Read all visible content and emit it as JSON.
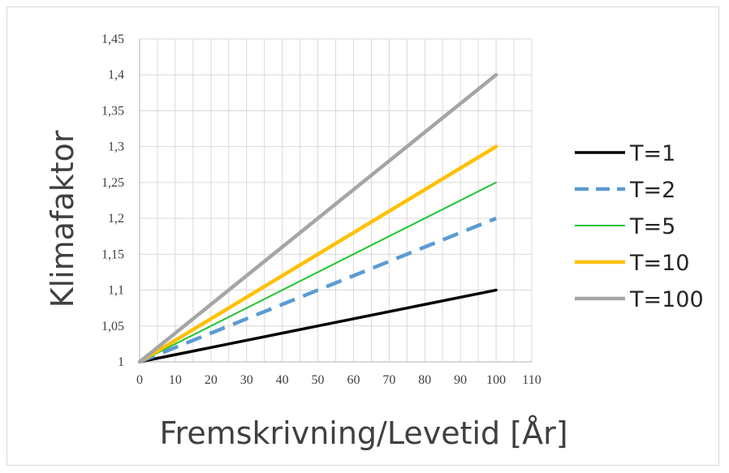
{
  "chart_data": {
    "type": "line",
    "title": "",
    "xlabel": "Fremskrivning/Levetid [År]",
    "ylabel": "Klimafaktor",
    "xlim": [
      0,
      110
    ],
    "ylim": [
      1,
      1.45
    ],
    "x_ticks": [
      "0",
      "10",
      "20",
      "30",
      "40",
      "50",
      "60",
      "70",
      "80",
      "90",
      "100",
      "110"
    ],
    "y_ticks": [
      "1",
      "1,05",
      "1,1",
      "1,15",
      "1,2",
      "1,25",
      "1,3",
      "1,35",
      "1,4",
      "1,45"
    ],
    "x_minor_step": 5,
    "grid": true,
    "legend_position": "right",
    "series": [
      {
        "name": "T=1",
        "color": "#000000",
        "style": "solid",
        "x": [
          0,
          100
        ],
        "y": [
          1,
          1.1
        ]
      },
      {
        "name": "T=2",
        "color": "#5b9bd5",
        "style": "dashed",
        "x": [
          0,
          100
        ],
        "y": [
          1,
          1.2
        ]
      },
      {
        "name": "T=5",
        "color": "#21c431",
        "style": "solid",
        "x": [
          0,
          100
        ],
        "y": [
          1,
          1.25
        ]
      },
      {
        "name": "T=10",
        "color": "#ffc000",
        "style": "solid",
        "x": [
          0,
          100
        ],
        "y": [
          1,
          1.3
        ]
      },
      {
        "name": "T=100",
        "color": "#a5a5a5",
        "style": "solid",
        "x": [
          0,
          100
        ],
        "y": [
          1,
          1.4
        ]
      }
    ]
  }
}
